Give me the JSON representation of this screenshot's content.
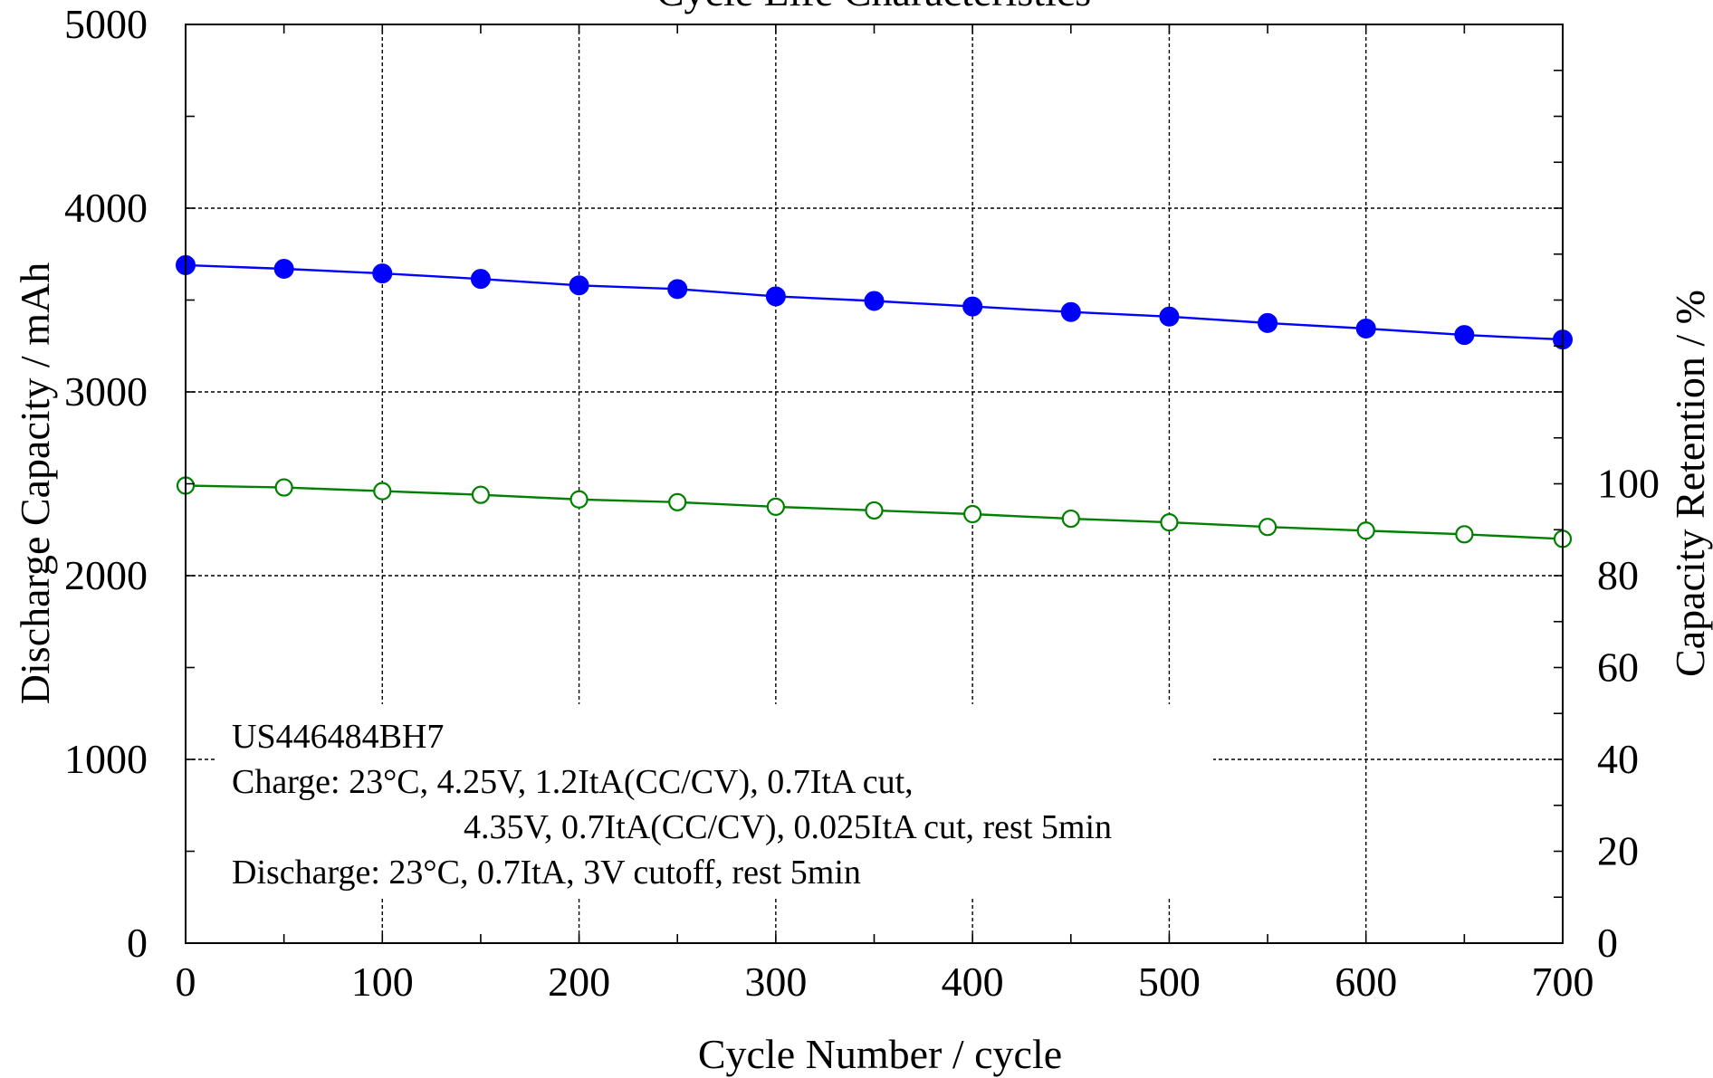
{
  "chart_data": {
    "type": "line",
    "title": "Cycle Life Characteristics",
    "xlabel": "Cycle Number / cycle",
    "ylabel_left": "Discharge Capacity / mAh",
    "ylabel_right": "Capacity Retention / %",
    "xlim": [
      0,
      700
    ],
    "ylim_left": [
      0,
      5000
    ],
    "ylim_right_data": [
      0,
      200
    ],
    "x_ticks": [
      0,
      100,
      200,
      300,
      400,
      500,
      600,
      700
    ],
    "y_ticks_left": [
      0,
      1000,
      2000,
      3000,
      4000,
      5000
    ],
    "y_ticks_right": [
      0,
      20,
      40,
      60,
      80,
      100
    ],
    "grid": true,
    "x": [
      0,
      50,
      100,
      150,
      200,
      250,
      300,
      350,
      400,
      450,
      500,
      550,
      600,
      650,
      700
    ],
    "series": [
      {
        "axis": "left",
        "color": "#0000ff",
        "marker": "filled-circle",
        "values": [
          3690,
          3670,
          3645,
          3615,
          3580,
          3560,
          3520,
          3495,
          3465,
          3435,
          3410,
          3375,
          3345,
          3310,
          3285
        ]
      },
      {
        "axis": "right",
        "color": "#008000",
        "marker": "open-circle",
        "values": [
          99.6,
          99.2,
          98.4,
          97.6,
          96.6,
          96.0,
          95.0,
          94.2,
          93.4,
          92.4,
          91.6,
          90.6,
          89.8,
          89.0,
          88.0
        ]
      }
    ],
    "annotation": {
      "lines": [
        "US446484BH7",
        "Charge: 23°C, 4.25V, 1.2ItA(CC/CV), 0.7ItA cut,",
        "4.35V, 0.7ItA(CC/CV), 0.025ItA cut, rest 5min",
        "Discharge: 23°C, 0.7ItA, 3V cutoff, rest 5min"
      ]
    }
  }
}
